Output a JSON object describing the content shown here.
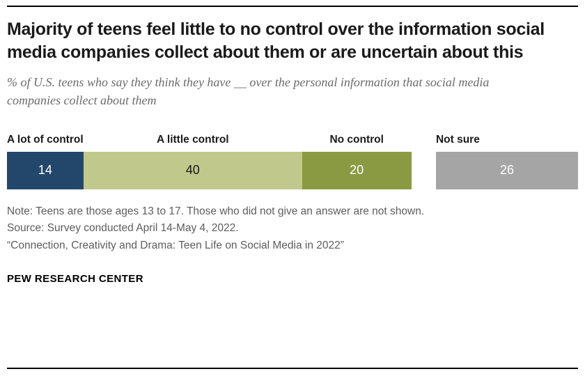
{
  "header": {
    "title": "Majority of teens feel little to no control over the information social media companies collect about them or are uncertain about this",
    "subtitle": "% of U.S. teens who say they think they have __ over the personal information that social media companies collect about them"
  },
  "chart_data": {
    "type": "bar",
    "stacked": true,
    "orientation": "horizontal",
    "unit": "%",
    "categories": [
      "A lot of control",
      "A little control",
      "No control",
      "Not sure"
    ],
    "values": [
      14,
      40,
      20,
      26
    ],
    "segment_colors": [
      "#23476b",
      "#c0c98b",
      "#8a9a43",
      "#a5a5a5"
    ],
    "value_text_colors": [
      "#ffffff",
      "#1a1a1a",
      "#ffffff",
      "#ffffff"
    ],
    "label_align": [
      "left",
      "center",
      "center",
      "left"
    ],
    "gap_before_index": 3,
    "gap_units": 4.5,
    "xlim": [
      0,
      100
    ],
    "legend_position": "above-segments",
    "grid": false
  },
  "notes": {
    "note": "Note: Teens are those ages 13 to 17. Those who did not give an answer are not shown.",
    "source": "Source: Survey conducted April 14-May 4, 2022.",
    "report": "“Connection, Creativity and Drama: Teen Life on Social Media in 2022”"
  },
  "footer": {
    "brand": "PEW RESEARCH CENTER"
  }
}
